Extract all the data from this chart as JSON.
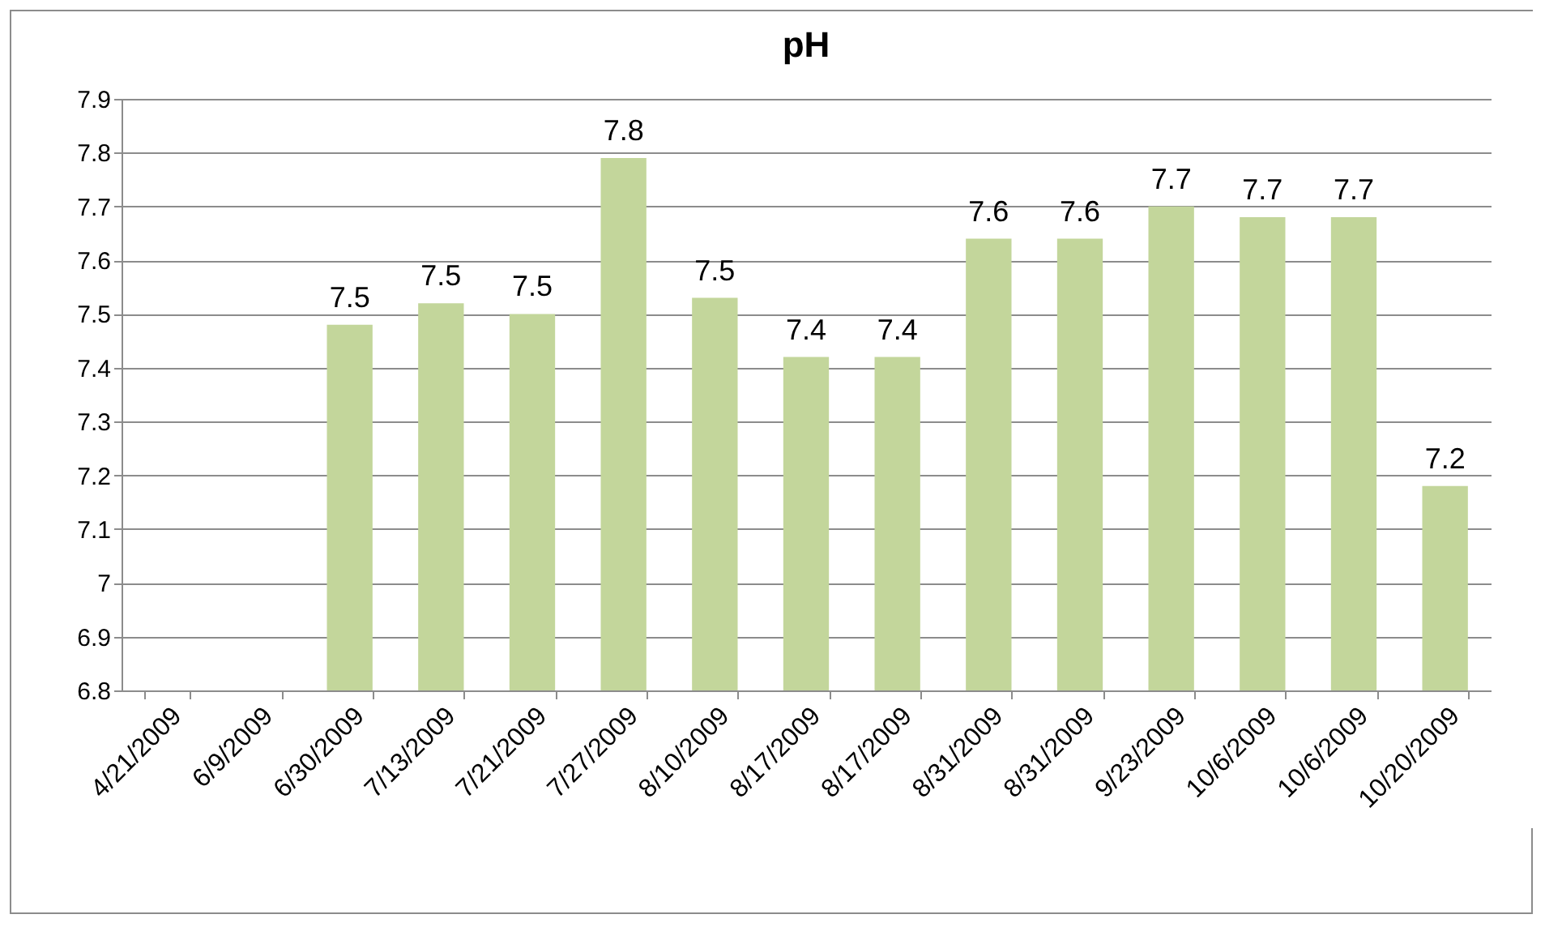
{
  "chart_data": {
    "type": "bar",
    "title": "pH",
    "categories": [
      "4/21/2009",
      "6/9/2009",
      "6/30/2009",
      "7/13/2009",
      "7/21/2009",
      "7/27/2009",
      "8/10/2009",
      "8/17/2009",
      "8/17/2009",
      "8/31/2009",
      "8/31/2009",
      "9/23/2009",
      "10/6/2009",
      "10/6/2009",
      "10/20/2009"
    ],
    "values": [
      null,
      null,
      7.48,
      7.52,
      7.5,
      7.79,
      7.53,
      7.42,
      7.42,
      7.64,
      7.64,
      7.7,
      7.68,
      7.68,
      7.18
    ],
    "value_labels": [
      null,
      null,
      "7.5",
      "7.5",
      "7.5",
      "7.8",
      "7.5",
      "7.4",
      "7.4",
      "7.6",
      "7.6",
      "7.7",
      "7.7",
      "7.7",
      "7.2"
    ],
    "color": "#c3d69b",
    "ylim": [
      6.8,
      7.9
    ],
    "yticks": [
      6.8,
      6.9,
      7,
      7.1,
      7.2,
      7.3,
      7.4,
      7.5,
      7.6,
      7.7,
      7.8,
      7.9
    ],
    "grid": "y"
  }
}
